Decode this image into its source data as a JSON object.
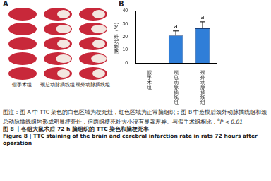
{
  "panel_a": {
    "label": "A",
    "columns": [
      "假手术组",
      "颈总动脉插线组",
      "颈外动脉插线组"
    ]
  },
  "chart_data": {
    "type": "bar",
    "panel_label": "B",
    "y_label": "脑梗死率（%）",
    "categories": [
      "假手术组",
      "颈总动脉插线组",
      "颈外动脉插线组"
    ],
    "values": [
      0,
      21,
      26.5
    ],
    "errors": [
      0,
      3.5,
      5
    ],
    "annotations": [
      null,
      "a",
      "a"
    ],
    "color": "#2f7ed8",
    "ylim": [
      0,
      40
    ],
    "yticks": [
      0,
      10,
      20,
      30,
      40
    ],
    "grid": false
  },
  "caption": {
    "note": "图注：图 A 中 TTC 染色的白色区域为梗死灶，红色区域为正常脑组织；图 B 中造模后颈外动脉插线组和颈总动脉插线组均形成明显梗死灶，但两组梗死灶大小没有显著差异。与假手术组相比，",
    "note_mark": "a",
    "note_tail": "P < 0.01",
    "figure_title": "图 8 丨各组大鼠术后 72 h 脑组织的 TTC 染色和脑梗死率",
    "figure_title_en": "Figure 8 | TTC staining of the brain and cerebral infarction rate in rats 72 hours after operation"
  }
}
